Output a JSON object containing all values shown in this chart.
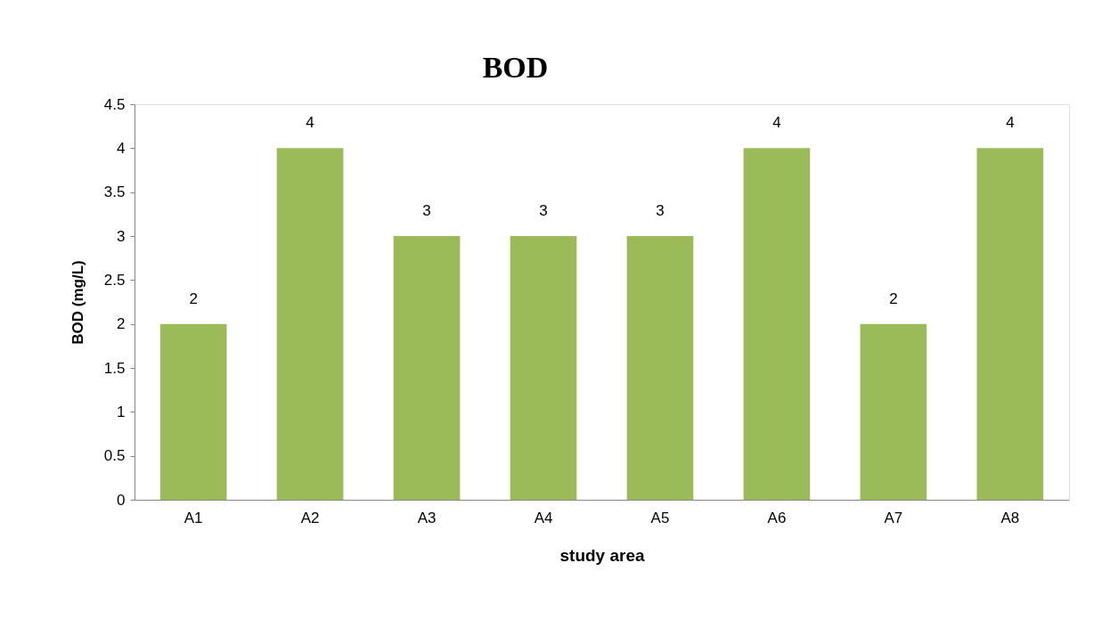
{
  "chart_data": {
    "type": "bar",
    "title": "BOD",
    "xlabel": "study area",
    "ylabel": "BOD  (mg/L)",
    "categories": [
      "A1",
      "A2",
      "A3",
      "A4",
      "A5",
      "A6",
      "A7",
      "A8"
    ],
    "values": [
      2,
      4,
      3,
      3,
      3,
      4,
      2,
      4
    ],
    "color": "#9bbb59",
    "ylim": [
      0,
      4.5
    ],
    "yticks": [
      0,
      0.5,
      1,
      1.5,
      2,
      2.5,
      3,
      3.5,
      4,
      4.5
    ],
    "data_labels": true,
    "grid": false
  }
}
